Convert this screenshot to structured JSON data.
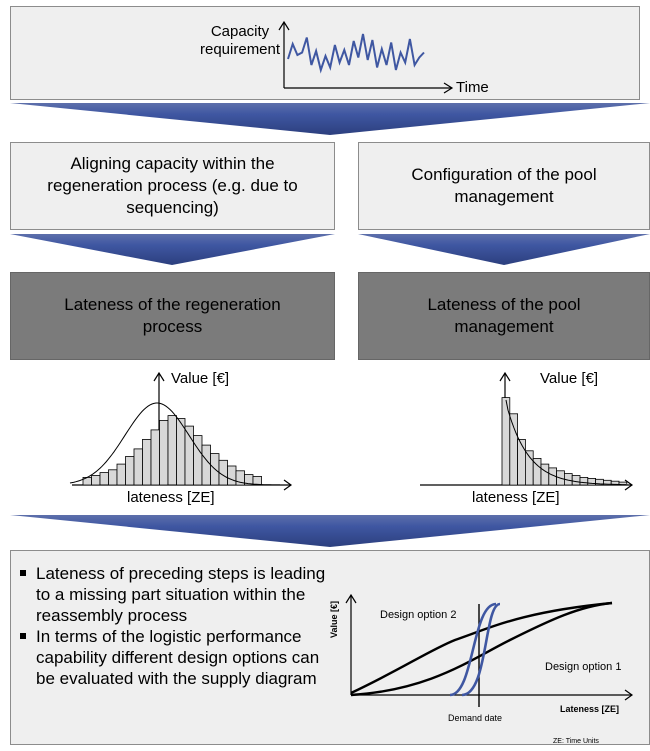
{
  "top": {
    "capacity_label": "Capacity\nrequirement",
    "time_label": "Time",
    "signal": [
      0.42,
      0.72,
      0.5,
      0.55,
      0.85,
      0.3,
      0.58,
      0.2,
      0.48,
      0.25,
      0.7,
      0.35,
      0.6,
      0.3,
      0.78,
      0.45,
      0.92,
      0.4,
      0.8,
      0.25,
      0.62,
      0.3,
      0.75,
      0.2,
      0.55,
      0.35,
      0.82,
      0.3,
      0.45,
      0.55
    ]
  },
  "left": {
    "box_text": "Aligning capacity within the\nregeneration process (e.g. due to\nsequencing)",
    "lateness_text": "Lateness of the regeneration\nprocess",
    "y_label": "Value [€]",
    "x_label": "lateness [ZE]",
    "histogram": [
      0.08,
      0.1,
      0.13,
      0.16,
      0.22,
      0.3,
      0.38,
      0.48,
      0.58,
      0.68,
      0.73,
      0.7,
      0.62,
      0.52,
      0.42,
      0.33,
      0.26,
      0.2,
      0.15,
      0.11,
      0.09
    ]
  },
  "right": {
    "box_text": "Configuration of the pool\nmanagement",
    "lateness_text": "Lateness of the pool\nmanagement",
    "y_label": "Value [€]",
    "x_label": "lateness [ZE]",
    "histogram": [
      0.92,
      0.75,
      0.48,
      0.36,
      0.28,
      0.22,
      0.18,
      0.15,
      0.12,
      0.1,
      0.08,
      0.07,
      0.06,
      0.05,
      0.04,
      0.03
    ]
  },
  "bottom": {
    "bullets": [
      "Lateness of preceding steps is leading to a missing part situation within the reassembly process",
      "In terms of the logistic performance capability different design options can be evaluated with the supply diagram"
    ],
    "supply_diagram": {
      "y_label": "Value [€]",
      "x_label": "Lateness [ZE]",
      "option1_label": "Design option 1",
      "option2_label": "Design option 2",
      "demand_label": "Demand date",
      "footnote": "ZE: Time Units"
    }
  },
  "colors": {
    "signal": "#3f57a2",
    "arrow": "#3f57a2",
    "option2": "#3f57a2",
    "light_box": "#efefef",
    "dark_box": "#7b7b7b"
  }
}
